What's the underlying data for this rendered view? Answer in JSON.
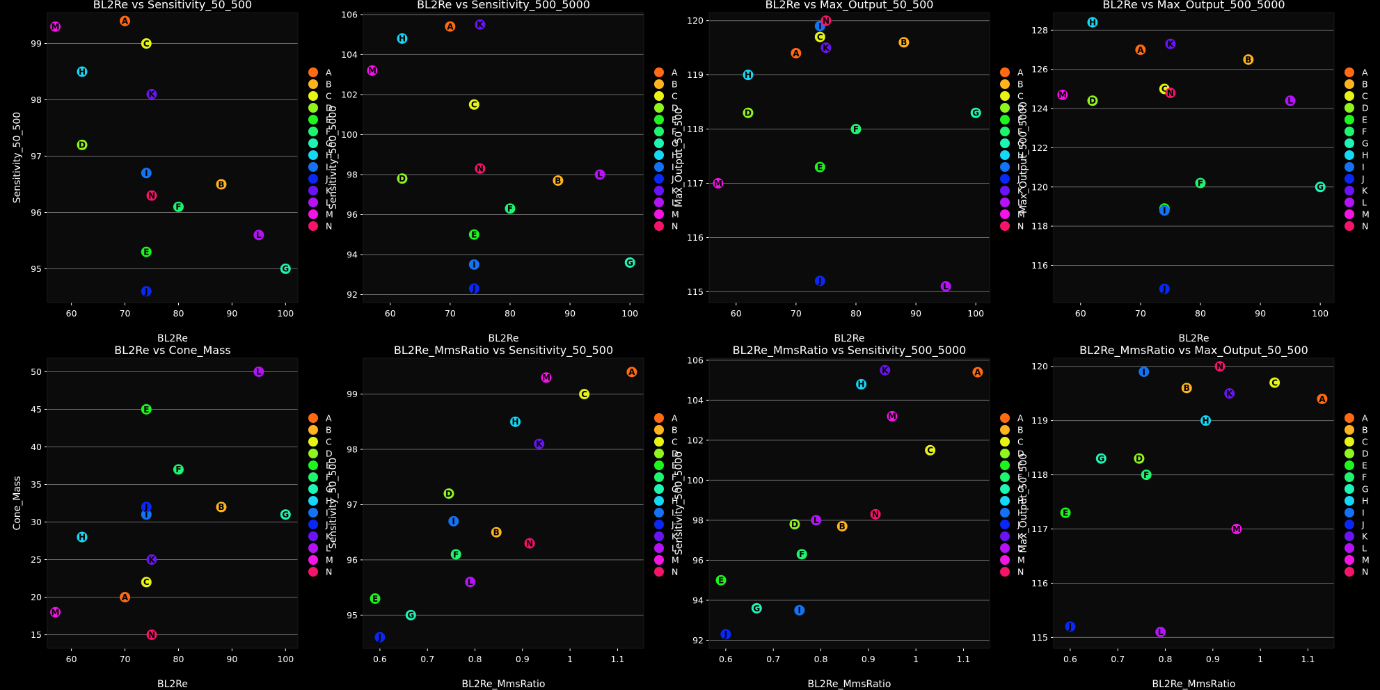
{
  "colors": {
    "A": "#ff6a13",
    "B": "#ffb41f",
    "C": "#e6f514",
    "D": "#8ef51e",
    "E": "#1ef51e",
    "F": "#1ef56e",
    "G": "#1ef5b4",
    "H": "#14d8f5",
    "I": "#1473f5",
    "J": "#0a28f5",
    "K": "#6a14f5",
    "L": "#b414f5",
    "M": "#f514e6",
    "N": "#f5146a"
  },
  "legend": [
    "A",
    "B",
    "C",
    "D",
    "E",
    "F",
    "G",
    "H",
    "I",
    "J",
    "K",
    "L",
    "M",
    "N"
  ],
  "chart_data": [
    {
      "type": "scatter",
      "title": "BL2Re vs Sensitivity_50_500",
      "xlabel": "BL2Re",
      "ylabel": "Sensitivity_50_500",
      "xlim": [
        55.5,
        102.3
      ],
      "ylim": [
        94.4,
        99.55
      ],
      "xticks": [
        60,
        70,
        80,
        90,
        100
      ],
      "yticks": [
        95,
        96,
        97,
        98,
        99
      ],
      "points": [
        {
          "label": "A",
          "x": 70,
          "y": 99.4
        },
        {
          "label": "B",
          "x": 88,
          "y": 96.5
        },
        {
          "label": "C",
          "x": 74,
          "y": 99.0
        },
        {
          "label": "D",
          "x": 62,
          "y": 97.2
        },
        {
          "label": "E",
          "x": 74,
          "y": 95.3
        },
        {
          "label": "F",
          "x": 80,
          "y": 96.1
        },
        {
          "label": "G",
          "x": 100,
          "y": 95.0
        },
        {
          "label": "H",
          "x": 62,
          "y": 98.5
        },
        {
          "label": "I",
          "x": 74,
          "y": 96.7
        },
        {
          "label": "J",
          "x": 74,
          "y": 94.6
        },
        {
          "label": "K",
          "x": 75,
          "y": 98.1
        },
        {
          "label": "L",
          "x": 95,
          "y": 95.6
        },
        {
          "label": "M",
          "x": 57,
          "y": 99.3
        },
        {
          "label": "N",
          "x": 75,
          "y": 96.3
        }
      ]
    },
    {
      "type": "scatter",
      "title": "BL2Re vs Sensitivity_500_5000",
      "xlabel": "BL2Re",
      "ylabel": "Sensitivity_500_5000",
      "xlim": [
        55.5,
        102.3
      ],
      "ylim": [
        91.6,
        106.1
      ],
      "xticks": [
        60,
        70,
        80,
        90,
        100
      ],
      "yticks": [
        92,
        94,
        96,
        98,
        100,
        102,
        104,
        106
      ],
      "points": [
        {
          "label": "A",
          "x": 70,
          "y": 105.4
        },
        {
          "label": "B",
          "x": 88,
          "y": 97.7
        },
        {
          "label": "C",
          "x": 74,
          "y": 101.5
        },
        {
          "label": "D",
          "x": 62,
          "y": 97.8
        },
        {
          "label": "E",
          "x": 74,
          "y": 95.0
        },
        {
          "label": "F",
          "x": 80,
          "y": 96.3
        },
        {
          "label": "G",
          "x": 100,
          "y": 93.6
        },
        {
          "label": "H",
          "x": 62,
          "y": 104.8
        },
        {
          "label": "I",
          "x": 74,
          "y": 93.5
        },
        {
          "label": "J",
          "x": 74,
          "y": 92.3
        },
        {
          "label": "K",
          "x": 75,
          "y": 105.5
        },
        {
          "label": "L",
          "x": 95,
          "y": 98.0
        },
        {
          "label": "M",
          "x": 57,
          "y": 103.2
        },
        {
          "label": "N",
          "x": 75,
          "y": 98.3
        }
      ]
    },
    {
      "type": "scatter",
      "title": "BL2Re vs Max_Output_50_500",
      "xlabel": "BL2Re",
      "ylabel": "Max_Output_50_500",
      "xlim": [
        55.5,
        102.3
      ],
      "ylim": [
        114.8,
        120.15
      ],
      "xticks": [
        60,
        70,
        80,
        90,
        100
      ],
      "yticks": [
        115,
        116,
        117,
        118,
        119,
        120
      ],
      "points": [
        {
          "label": "A",
          "x": 70,
          "y": 119.4
        },
        {
          "label": "B",
          "x": 88,
          "y": 119.6
        },
        {
          "label": "C",
          "x": 74,
          "y": 119.7
        },
        {
          "label": "D",
          "x": 62,
          "y": 118.3
        },
        {
          "label": "E",
          "x": 74,
          "y": 117.3
        },
        {
          "label": "F",
          "x": 80,
          "y": 118.0
        },
        {
          "label": "G",
          "x": 100,
          "y": 118.3
        },
        {
          "label": "H",
          "x": 62,
          "y": 119.0
        },
        {
          "label": "I",
          "x": 74,
          "y": 119.9
        },
        {
          "label": "J",
          "x": 74,
          "y": 115.2
        },
        {
          "label": "K",
          "x": 75,
          "y": 119.5
        },
        {
          "label": "L",
          "x": 95,
          "y": 115.1
        },
        {
          "label": "M",
          "x": 57,
          "y": 117.0
        },
        {
          "label": "N",
          "x": 75,
          "y": 120.0
        }
      ]
    },
    {
      "type": "scatter",
      "title": "BL2Re vs Max_Output_500_5000",
      "xlabel": "BL2Re",
      "ylabel": "Max_Output_500_5000",
      "xlim": [
        55.5,
        102.3
      ],
      "ylim": [
        114.1,
        128.9
      ],
      "xticks": [
        60,
        70,
        80,
        90,
        100
      ],
      "yticks": [
        116,
        118,
        120,
        122,
        124,
        126,
        128
      ],
      "points": [
        {
          "label": "A",
          "x": 70,
          "y": 127.0
        },
        {
          "label": "B",
          "x": 88,
          "y": 126.5
        },
        {
          "label": "C",
          "x": 74,
          "y": 125.0
        },
        {
          "label": "D",
          "x": 62,
          "y": 124.4
        },
        {
          "label": "E",
          "x": 74,
          "y": 118.9
        },
        {
          "label": "F",
          "x": 80,
          "y": 120.2
        },
        {
          "label": "G",
          "x": 100,
          "y": 120.0
        },
        {
          "label": "H",
          "x": 62,
          "y": 128.4
        },
        {
          "label": "I",
          "x": 74,
          "y": 118.8
        },
        {
          "label": "J",
          "x": 74,
          "y": 114.8
        },
        {
          "label": "K",
          "x": 75,
          "y": 127.3
        },
        {
          "label": "L",
          "x": 95,
          "y": 124.4
        },
        {
          "label": "M",
          "x": 57,
          "y": 124.7
        },
        {
          "label": "N",
          "x": 75,
          "y": 124.8
        }
      ]
    },
    {
      "type": "scatter",
      "title": "BL2Re vs Cone_Mass",
      "xlabel": "BL2Re",
      "ylabel": "Cone_Mass",
      "xlim": [
        55.5,
        102.3
      ],
      "ylim": [
        13.2,
        51.8
      ],
      "xticks": [
        60,
        70,
        80,
        90,
        100
      ],
      "yticks": [
        15,
        20,
        25,
        30,
        35,
        40,
        45,
        50
      ],
      "points": [
        {
          "label": "A",
          "x": 70,
          "y": 20
        },
        {
          "label": "B",
          "x": 88,
          "y": 32
        },
        {
          "label": "C",
          "x": 74,
          "y": 22
        },
        {
          "label": "D",
          "x": 62,
          "y": 28
        },
        {
          "label": "E",
          "x": 74,
          "y": 45
        },
        {
          "label": "F",
          "x": 80,
          "y": 37
        },
        {
          "label": "G",
          "x": 100,
          "y": 31
        },
        {
          "label": "H",
          "x": 62,
          "y": 28
        },
        {
          "label": "I",
          "x": 74,
          "y": 31
        },
        {
          "label": "J",
          "x": 74,
          "y": 32
        },
        {
          "label": "K",
          "x": 75,
          "y": 25
        },
        {
          "label": "L",
          "x": 95,
          "y": 50
        },
        {
          "label": "M",
          "x": 57,
          "y": 18
        },
        {
          "label": "N",
          "x": 75,
          "y": 15
        }
      ]
    },
    {
      "type": "scatter",
      "title": "BL2Re_MmsRatio vs Sensitivity_50_500",
      "xlabel": "BL2Re_MmsRatio",
      "ylabel": "Sensitivity_50_500",
      "xlim": [
        0.565,
        1.155
      ],
      "ylim": [
        94.4,
        99.65
      ],
      "xticks": [
        0.6,
        0.7,
        0.8,
        0.9,
        1.0,
        1.1
      ],
      "yticks": [
        95,
        96,
        97,
        98,
        99
      ],
      "points": [
        {
          "label": "A",
          "x": 1.13,
          "y": 99.4
        },
        {
          "label": "B",
          "x": 0.845,
          "y": 96.5
        },
        {
          "label": "C",
          "x": 1.03,
          "y": 99.0
        },
        {
          "label": "D",
          "x": 0.745,
          "y": 97.2
        },
        {
          "label": "E",
          "x": 0.59,
          "y": 95.3
        },
        {
          "label": "F",
          "x": 0.76,
          "y": 96.1
        },
        {
          "label": "G",
          "x": 0.665,
          "y": 95.0
        },
        {
          "label": "H",
          "x": 0.885,
          "y": 98.5
        },
        {
          "label": "I",
          "x": 0.755,
          "y": 96.7
        },
        {
          "label": "J",
          "x": 0.6,
          "y": 94.6
        },
        {
          "label": "K",
          "x": 0.935,
          "y": 98.1
        },
        {
          "label": "L",
          "x": 0.79,
          "y": 95.6
        },
        {
          "label": "M",
          "x": 0.95,
          "y": 99.3
        },
        {
          "label": "N",
          "x": 0.915,
          "y": 96.3
        }
      ]
    },
    {
      "type": "scatter",
      "title": "BL2Re_MmsRatio vs Sensitivity_500_5000",
      "xlabel": "BL2Re_MmsRatio",
      "ylabel": "Sensitivity_500_5000",
      "xlim": [
        0.565,
        1.155
      ],
      "ylim": [
        91.6,
        106.1
      ],
      "xticks": [
        0.6,
        0.7,
        0.8,
        0.9,
        1.0,
        1.1
      ],
      "yticks": [
        92,
        94,
        96,
        98,
        100,
        102,
        104,
        106
      ],
      "points": [
        {
          "label": "A",
          "x": 1.13,
          "y": 105.4
        },
        {
          "label": "B",
          "x": 0.845,
          "y": 97.7
        },
        {
          "label": "C",
          "x": 1.03,
          "y": 101.5
        },
        {
          "label": "D",
          "x": 0.745,
          "y": 97.8
        },
        {
          "label": "E",
          "x": 0.59,
          "y": 95.0
        },
        {
          "label": "F",
          "x": 0.76,
          "y": 96.3
        },
        {
          "label": "G",
          "x": 0.665,
          "y": 93.6
        },
        {
          "label": "H",
          "x": 0.885,
          "y": 104.8
        },
        {
          "label": "I",
          "x": 0.755,
          "y": 93.5
        },
        {
          "label": "J",
          "x": 0.6,
          "y": 92.3
        },
        {
          "label": "K",
          "x": 0.935,
          "y": 105.5
        },
        {
          "label": "L",
          "x": 0.79,
          "y": 98.0
        },
        {
          "label": "M",
          "x": 0.95,
          "y": 103.2
        },
        {
          "label": "N",
          "x": 0.915,
          "y": 98.3
        }
      ]
    },
    {
      "type": "scatter",
      "title": "BL2Re_MmsRatio vs Max_Output_50_500",
      "xlabel": "BL2Re_MmsRatio",
      "ylabel": "Max_Output_50_500",
      "xlim": [
        0.565,
        1.155
      ],
      "ylim": [
        114.8,
        120.15
      ],
      "xticks": [
        0.6,
        0.7,
        0.8,
        0.9,
        1.0,
        1.1
      ],
      "yticks": [
        115,
        116,
        117,
        118,
        119,
        120
      ],
      "points": [
        {
          "label": "A",
          "x": 1.13,
          "y": 119.4
        },
        {
          "label": "B",
          "x": 0.845,
          "y": 119.6
        },
        {
          "label": "C",
          "x": 1.03,
          "y": 119.7
        },
        {
          "label": "D",
          "x": 0.745,
          "y": 118.3
        },
        {
          "label": "E",
          "x": 0.59,
          "y": 117.3
        },
        {
          "label": "F",
          "x": 0.76,
          "y": 118.0
        },
        {
          "label": "G",
          "x": 0.665,
          "y": 118.3
        },
        {
          "label": "H",
          "x": 0.885,
          "y": 119.0
        },
        {
          "label": "I",
          "x": 0.755,
          "y": 119.9
        },
        {
          "label": "J",
          "x": 0.6,
          "y": 115.2
        },
        {
          "label": "K",
          "x": 0.935,
          "y": 119.5
        },
        {
          "label": "L",
          "x": 0.79,
          "y": 115.1
        },
        {
          "label": "M",
          "x": 0.95,
          "y": 117.0
        },
        {
          "label": "N",
          "x": 0.915,
          "y": 120.0
        }
      ]
    }
  ]
}
